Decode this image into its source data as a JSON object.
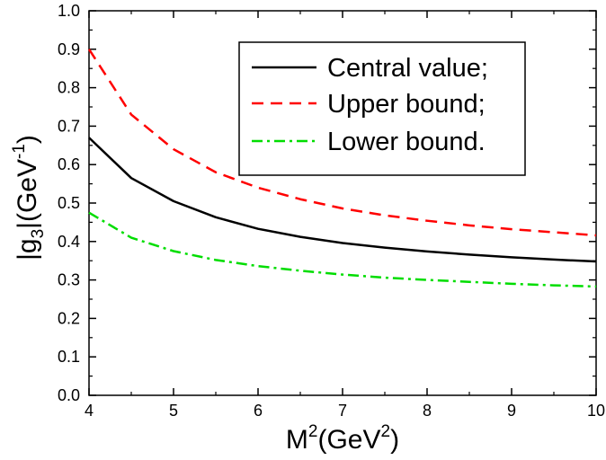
{
  "chart_data": {
    "type": "line",
    "xlabel_main": "M",
    "xlabel_sup": "2",
    "xlabel_rest": "(GeV",
    "xlabel_sup2": "2",
    "xlabel_close": ")",
    "ylabel_main": "|g",
    "ylabel_sub": "3",
    "ylabel_rest": "|(GeV",
    "ylabel_sup": "-1",
    "ylabel_close": ")",
    "xlim": [
      4,
      10
    ],
    "ylim": [
      0.0,
      1.0
    ],
    "x_ticks": [
      "4",
      "5",
      "6",
      "7",
      "8",
      "9",
      "10"
    ],
    "y_ticks": [
      "0.0",
      "0.1",
      "0.2",
      "0.3",
      "0.4",
      "0.5",
      "0.6",
      "0.7",
      "0.8",
      "0.9",
      "1.0"
    ],
    "x": [
      4.0,
      4.5,
      5.0,
      5.5,
      6.0,
      6.5,
      7.0,
      7.5,
      8.0,
      8.5,
      9.0,
      9.5,
      10.0
    ],
    "series": [
      {
        "name": "Central value;",
        "color": "#000000",
        "dash": "solid",
        "values": [
          0.67,
          0.565,
          0.505,
          0.463,
          0.433,
          0.412,
          0.396,
          0.384,
          0.374,
          0.366,
          0.359,
          0.353,
          0.348
        ]
      },
      {
        "name": "Upper bound;",
        "color": "#ff0000",
        "dash": "dashed",
        "values": [
          0.9,
          0.73,
          0.64,
          0.58,
          0.54,
          0.51,
          0.486,
          0.468,
          0.454,
          0.442,
          0.432,
          0.424,
          0.416
        ]
      },
      {
        "name": "Lower bound.",
        "color": "#00dd00",
        "dash": "dashdot",
        "values": [
          0.475,
          0.41,
          0.375,
          0.352,
          0.336,
          0.324,
          0.314,
          0.306,
          0.3,
          0.295,
          0.29,
          0.286,
          0.283
        ]
      }
    ],
    "legend_position": "top-right",
    "grid": false
  }
}
